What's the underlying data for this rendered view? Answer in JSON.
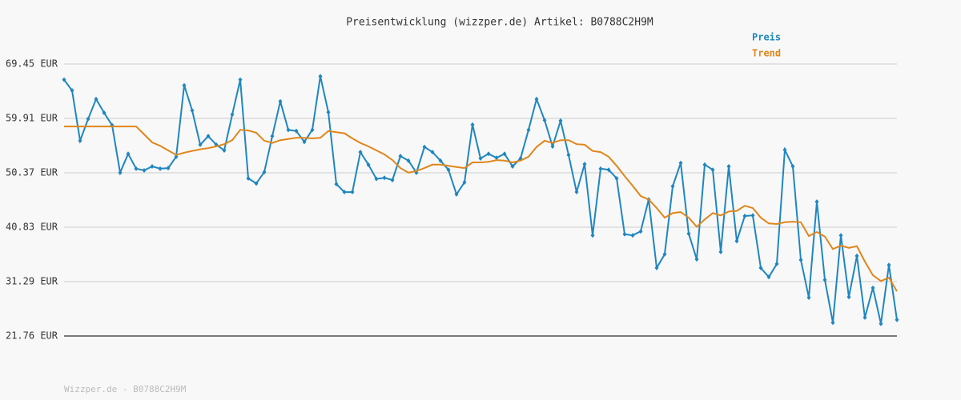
{
  "chart_data": {
    "type": "line",
    "title": "Preisentwicklung (wizzper.de) Artikel: B0788C2H9M",
    "footer": "Wizzper.de - B0788C2H9M",
    "ylim": [
      21.76,
      69.45
    ],
    "yticks": [
      {
        "value": 69.45,
        "label": "69.45 EUR"
      },
      {
        "value": 59.91,
        "label": "59.91 EUR"
      },
      {
        "value": 50.37,
        "label": "50.37 EUR"
      },
      {
        "value": 40.83,
        "label": "40.83 EUR"
      },
      {
        "value": 31.29,
        "label": "31.29 EUR"
      },
      {
        "value": 21.76,
        "label": "21.76 EUR"
      }
    ],
    "grid": true,
    "series": [
      {
        "name": "Preis",
        "color": "#1f86c0",
        "markers": true,
        "values": [
          66.7,
          64.8,
          56.0,
          59.8,
          63.3,
          60.9,
          58.7,
          50.4,
          53.7,
          51.1,
          50.8,
          51.5,
          51.1,
          51.2,
          53.2,
          65.7,
          61.3,
          55.3,
          56.8,
          55.3,
          54.3,
          60.6,
          66.7,
          49.4,
          48.5,
          50.5,
          56.8,
          62.9,
          57.9,
          57.7,
          55.8,
          57.9,
          67.3,
          61.0,
          48.4,
          47.0,
          47.0,
          54.0,
          51.8,
          49.3,
          49.5,
          49.1,
          53.3,
          52.5,
          50.4,
          54.9,
          54.0,
          52.5,
          50.9,
          46.6,
          48.7,
          58.8,
          52.9,
          53.7,
          53.0,
          53.7,
          51.5,
          52.9,
          57.9,
          63.3,
          59.6,
          55.0,
          59.5,
          53.5,
          47.0,
          51.9,
          39.4,
          51.1,
          50.9,
          49.4,
          39.6,
          39.4,
          40.1,
          45.7,
          33.7,
          36.1,
          48.0,
          52.1,
          39.7,
          35.2,
          51.8,
          50.9,
          36.5,
          51.5,
          38.4,
          42.8,
          42.9,
          33.7,
          32.1,
          34.4,
          54.4,
          51.5,
          35.1,
          28.5,
          45.3,
          31.6,
          24.1,
          39.4,
          28.6,
          35.8,
          25.0,
          30.2,
          23.9,
          34.2,
          24.6
        ]
      },
      {
        "name": "Trend",
        "color": "#e0861a",
        "markers": false,
        "values": [
          58.5,
          58.5,
          58.5,
          58.5,
          58.5,
          58.5,
          58.5,
          58.5,
          58.5,
          58.5,
          57.1,
          55.7,
          55.1,
          54.3,
          53.5,
          53.9,
          54.2,
          54.5,
          54.7,
          55.0,
          55.4,
          56.1,
          57.9,
          57.8,
          57.4,
          56.0,
          55.6,
          56.1,
          56.3,
          56.5,
          56.5,
          56.4,
          56.5,
          57.7,
          57.5,
          57.3,
          56.4,
          55.6,
          55.0,
          54.3,
          53.6,
          52.6,
          51.2,
          50.4,
          50.7,
          51.2,
          51.8,
          51.8,
          51.6,
          51.4,
          51.2,
          52.2,
          52.2,
          52.3,
          52.6,
          52.5,
          52.2,
          52.5,
          53.2,
          54.9,
          56.0,
          55.6,
          56.1,
          56.1,
          55.4,
          55.3,
          54.2,
          54.0,
          53.2,
          51.6,
          49.8,
          48.1,
          46.3,
          45.7,
          44.2,
          42.5,
          43.3,
          43.5,
          42.5,
          40.9,
          42.2,
          43.3,
          42.9,
          43.6,
          43.7,
          44.6,
          44.2,
          42.5,
          41.5,
          41.4,
          41.7,
          41.8,
          41.7,
          39.3,
          40.0,
          39.2,
          37.0,
          37.6,
          37.2,
          37.5,
          34.8,
          32.4,
          31.4,
          32.0,
          29.6
        ]
      }
    ]
  }
}
